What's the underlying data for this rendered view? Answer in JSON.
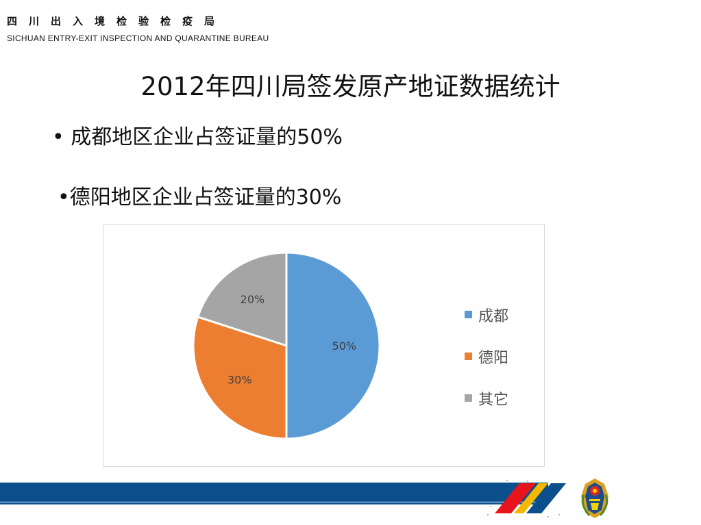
{
  "header": {
    "org_cn": "四川出入境检验检疫局",
    "org_en": "SICHUAN ENTRY-EXIT INSPECTION AND QUARANTINE BUREAU"
  },
  "slide": {
    "title": "2012年四川局签发原产地证数据统计",
    "bullet1": "• 成都地区企业占签证量的50%",
    "bullet2": "•德阳地区企业占签证量的30%"
  },
  "chart_data": {
    "type": "pie",
    "title": "",
    "labels": [
      "成都",
      "德阳",
      "其它"
    ],
    "values": [
      50,
      30,
      20
    ],
    "value_labels": [
      "50%",
      "30%",
      "20%"
    ],
    "colors": [
      "#5b9bd5",
      "#ed7d31",
      "#a5a5a5"
    ],
    "legend_position": "right"
  },
  "footer": {
    "band_color": "#0b4f8c",
    "emblem_icon": "customs-emblem-icon"
  }
}
